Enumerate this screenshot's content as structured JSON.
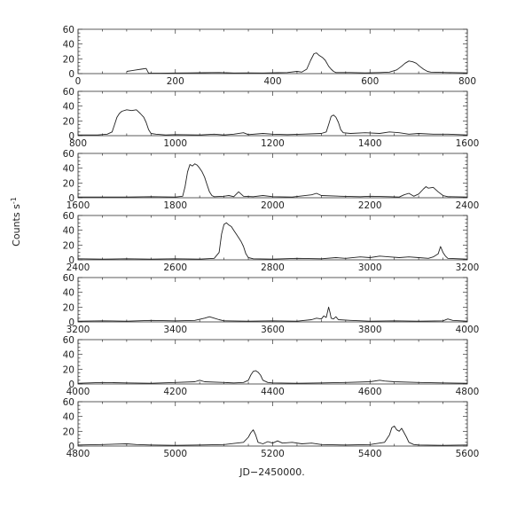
{
  "figure": {
    "ylabel": "Counts s",
    "ylabel_sup": "-1",
    "xlabel": "JD−2450000."
  },
  "chart_data": [
    {
      "type": "line",
      "xlim": [
        0,
        800
      ],
      "ylim": [
        0,
        60
      ],
      "x_ticks": [
        0,
        200,
        400,
        600,
        800
      ],
      "y_ticks": [
        0,
        20,
        40,
        60
      ],
      "segments": [
        [
          [
            100,
            3
          ],
          [
            110,
            4
          ],
          [
            120,
            5
          ],
          [
            130,
            6
          ],
          [
            140,
            7
          ],
          [
            145,
            0.5
          ],
          [
            150,
            0.5
          ],
          [
            170,
            0.5
          ],
          [
            200,
            0.8
          ],
          [
            230,
            1
          ],
          [
            260,
            1.2
          ],
          [
            290,
            1.5
          ],
          [
            320,
            0.8
          ],
          [
            350,
            1
          ],
          [
            380,
            0.8
          ],
          [
            410,
            1.2
          ],
          [
            430,
            1.5
          ],
          [
            450,
            3
          ],
          [
            460,
            2
          ],
          [
            470,
            6
          ],
          [
            478,
            18
          ],
          [
            485,
            27
          ],
          [
            490,
            28
          ],
          [
            495,
            25
          ],
          [
            502,
            22
          ],
          [
            508,
            18
          ],
          [
            515,
            10
          ],
          [
            520,
            6
          ],
          [
            525,
            3
          ],
          [
            530,
            1.5
          ],
          [
            560,
            1.5
          ],
          [
            590,
            1
          ],
          [
            620,
            1.5
          ],
          [
            640,
            2
          ],
          [
            655,
            5
          ],
          [
            665,
            10
          ],
          [
            672,
            14
          ],
          [
            680,
            17
          ],
          [
            688,
            16
          ],
          [
            695,
            14
          ],
          [
            702,
            10
          ],
          [
            710,
            6
          ],
          [
            718,
            3
          ],
          [
            725,
            2
          ],
          [
            760,
            1.5
          ],
          [
            800,
            1
          ]
        ]
      ]
    },
    {
      "type": "line",
      "xlim": [
        800,
        1600
      ],
      "ylim": [
        0,
        60
      ],
      "x_ticks": [
        800,
        1000,
        1200,
        1400,
        1600
      ],
      "y_ticks": [
        0,
        20,
        40,
        60
      ],
      "segments": [
        [
          [
            800,
            1
          ],
          [
            840,
            1
          ],
          [
            860,
            2
          ],
          [
            870,
            5
          ],
          [
            875,
            15
          ],
          [
            880,
            25
          ],
          [
            885,
            30
          ],
          [
            890,
            33
          ],
          [
            900,
            35
          ],
          [
            910,
            34
          ],
          [
            920,
            35
          ],
          [
            928,
            30
          ],
          [
            935,
            25
          ],
          [
            940,
            18
          ],
          [
            945,
            8
          ],
          [
            950,
            3
          ],
          [
            960,
            2
          ],
          [
            980,
            1
          ],
          [
            1000,
            1.5
          ],
          [
            1050,
            1
          ],
          [
            1080,
            2
          ],
          [
            1100,
            1
          ],
          [
            1120,
            2
          ],
          [
            1140,
            4
          ],
          [
            1150,
            1.5
          ],
          [
            1180,
            3
          ],
          [
            1200,
            2
          ],
          [
            1230,
            1.5
          ],
          [
            1260,
            2
          ],
          [
            1300,
            3
          ],
          [
            1310,
            5
          ],
          [
            1315,
            15
          ],
          [
            1320,
            26
          ],
          [
            1325,
            28
          ],
          [
            1330,
            25
          ],
          [
            1335,
            18
          ],
          [
            1340,
            8
          ],
          [
            1345,
            4
          ],
          [
            1360,
            3
          ],
          [
            1390,
            4
          ],
          [
            1420,
            3
          ],
          [
            1440,
            5
          ],
          [
            1460,
            4
          ],
          [
            1480,
            2
          ],
          [
            1500,
            3
          ],
          [
            1530,
            2
          ],
          [
            1560,
            2
          ],
          [
            1600,
            1
          ]
        ]
      ]
    },
    {
      "type": "line",
      "xlim": [
        1600,
        2400
      ],
      "ylim": [
        0,
        60
      ],
      "x_ticks": [
        1600,
        1800,
        2000,
        2200,
        2400
      ],
      "y_ticks": [
        0,
        20,
        40,
        60
      ],
      "segments": [
        [
          [
            1600,
            1
          ],
          [
            1650,
            1
          ],
          [
            1700,
            1
          ],
          [
            1750,
            1.5
          ],
          [
            1800,
            1
          ],
          [
            1815,
            2
          ],
          [
            1820,
            15
          ],
          [
            1825,
            35
          ],
          [
            1830,
            45
          ],
          [
            1835,
            43
          ],
          [
            1840,
            46
          ],
          [
            1845,
            44
          ],
          [
            1850,
            40
          ],
          [
            1855,
            35
          ],
          [
            1860,
            28
          ],
          [
            1865,
            18
          ],
          [
            1870,
            8
          ],
          [
            1875,
            3
          ],
          [
            1880,
            1.5
          ],
          [
            1900,
            2
          ],
          [
            1910,
            3
          ],
          [
            1920,
            1.5
          ],
          [
            1930,
            8
          ],
          [
            1940,
            2
          ],
          [
            1960,
            1.5
          ],
          [
            1980,
            3
          ],
          [
            2000,
            1.5
          ],
          [
            2040,
            1
          ],
          [
            2080,
            4
          ],
          [
            2090,
            6
          ],
          [
            2100,
            3
          ],
          [
            2140,
            2
          ],
          [
            2180,
            1.5
          ],
          [
            2200,
            2
          ],
          [
            2240,
            1.5
          ],
          [
            2260,
            1
          ],
          [
            2270,
            4
          ],
          [
            2280,
            6
          ],
          [
            2290,
            2
          ],
          [
            2300,
            5
          ],
          [
            2310,
            12
          ],
          [
            2315,
            15
          ],
          [
            2320,
            13
          ],
          [
            2330,
            14
          ],
          [
            2340,
            8
          ],
          [
            2350,
            3
          ],
          [
            2360,
            1.5
          ],
          [
            2400,
            1
          ]
        ]
      ]
    },
    {
      "type": "line",
      "xlim": [
        2400,
        3200
      ],
      "ylim": [
        0,
        60
      ],
      "x_ticks": [
        2400,
        2600,
        2800,
        3000,
        3200
      ],
      "y_ticks": [
        0,
        20,
        40,
        60
      ],
      "segments": [
        [
          [
            2400,
            1.5
          ],
          [
            2450,
            1
          ],
          [
            2500,
            1.5
          ],
          [
            2550,
            1
          ],
          [
            2600,
            1.5
          ],
          [
            2650,
            1
          ],
          [
            2680,
            2
          ],
          [
            2690,
            10
          ],
          [
            2695,
            35
          ],
          [
            2700,
            48
          ],
          [
            2705,
            50
          ],
          [
            2710,
            47
          ],
          [
            2715,
            45
          ],
          [
            2720,
            40
          ],
          [
            2725,
            35
          ],
          [
            2730,
            30
          ],
          [
            2735,
            25
          ],
          [
            2740,
            18
          ],
          [
            2745,
            8
          ],
          [
            2750,
            3
          ],
          [
            2760,
            1.5
          ],
          [
            2800,
            1
          ],
          [
            2850,
            2
          ],
          [
            2900,
            1.5
          ],
          [
            2930,
            3
          ],
          [
            2950,
            2
          ],
          [
            2980,
            4
          ],
          [
            3000,
            3
          ],
          [
            3020,
            5
          ],
          [
            3040,
            4
          ],
          [
            3060,
            3
          ],
          [
            3080,
            4
          ],
          [
            3100,
            3
          ],
          [
            3120,
            2
          ],
          [
            3130,
            4
          ],
          [
            3140,
            8
          ],
          [
            3145,
            18
          ],
          [
            3150,
            10
          ],
          [
            3155,
            5
          ],
          [
            3160,
            2
          ],
          [
            3200,
            1
          ]
        ]
      ]
    },
    {
      "type": "line",
      "xlim": [
        3200,
        4000
      ],
      "ylim": [
        0,
        60
      ],
      "x_ticks": [
        3200,
        3400,
        3600,
        3800,
        4000
      ],
      "y_ticks": [
        0,
        20,
        40,
        60
      ],
      "segments": [
        [
          [
            3200,
            1
          ],
          [
            3250,
            1.5
          ],
          [
            3300,
            1
          ],
          [
            3350,
            2
          ],
          [
            3400,
            1.5
          ],
          [
            3440,
            2
          ],
          [
            3460,
            5
          ],
          [
            3470,
            7
          ],
          [
            3480,
            5
          ],
          [
            3490,
            3
          ],
          [
            3500,
            1.5
          ],
          [
            3550,
            1
          ],
          [
            3600,
            1.5
          ],
          [
            3650,
            1
          ],
          [
            3680,
            3
          ],
          [
            3690,
            5
          ],
          [
            3700,
            4
          ],
          [
            3705,
            8
          ],
          [
            3710,
            6
          ],
          [
            3715,
            20
          ],
          [
            3718,
            12
          ],
          [
            3720,
            5
          ],
          [
            3725,
            4
          ],
          [
            3730,
            7
          ],
          [
            3735,
            3
          ],
          [
            3760,
            2
          ],
          [
            3800,
            1
          ],
          [
            3850,
            1.5
          ],
          [
            3900,
            1
          ],
          [
            3950,
            1.5
          ],
          [
            3960,
            4
          ],
          [
            3970,
            2
          ],
          [
            4000,
            1
          ]
        ]
      ]
    },
    {
      "type": "line",
      "xlim": [
        4000,
        4800
      ],
      "ylim": [
        0,
        60
      ],
      "x_ticks": [
        4000,
        4200,
        4400,
        4600,
        4800
      ],
      "y_ticks": [
        0,
        20,
        40,
        60
      ],
      "segments": [
        [
          [
            4000,
            1
          ],
          [
            4050,
            2
          ],
          [
            4100,
            1.5
          ],
          [
            4150,
            1
          ],
          [
            4200,
            2
          ],
          [
            4240,
            3
          ],
          [
            4250,
            5
          ],
          [
            4260,
            3
          ],
          [
            4300,
            2
          ],
          [
            4320,
            1.5
          ],
          [
            4340,
            2
          ],
          [
            4350,
            5
          ],
          [
            4355,
            12
          ],
          [
            4360,
            17
          ],
          [
            4365,
            18
          ],
          [
            4370,
            16
          ],
          [
            4375,
            12
          ],
          [
            4380,
            5
          ],
          [
            4390,
            2
          ],
          [
            4400,
            1.5
          ],
          [
            4450,
            1
          ],
          [
            4500,
            1.5
          ],
          [
            4550,
            2
          ],
          [
            4600,
            3
          ],
          [
            4620,
            5
          ],
          [
            4630,
            4
          ],
          [
            4650,
            3
          ],
          [
            4700,
            2
          ],
          [
            4750,
            1.5
          ],
          [
            4800,
            1
          ]
        ]
      ]
    },
    {
      "type": "line",
      "xlim": [
        4800,
        5600
      ],
      "ylim": [
        0,
        60
      ],
      "x_ticks": [
        4800,
        5000,
        5200,
        5400,
        5600
      ],
      "y_ticks": [
        0,
        20,
        40,
        60
      ],
      "segments": [
        [
          [
            4800,
            1.5
          ],
          [
            4850,
            2
          ],
          [
            4900,
            3
          ],
          [
            4920,
            2
          ],
          [
            4950,
            1.5
          ],
          [
            5000,
            1
          ],
          [
            5050,
            1.5
          ],
          [
            5100,
            2
          ],
          [
            5140,
            5
          ],
          [
            5150,
            12
          ],
          [
            5155,
            18
          ],
          [
            5160,
            22
          ],
          [
            5165,
            15
          ],
          [
            5170,
            5
          ],
          [
            5180,
            3
          ],
          [
            5190,
            6
          ],
          [
            5200,
            4
          ],
          [
            5210,
            7
          ],
          [
            5220,
            4
          ],
          [
            5240,
            5
          ],
          [
            5260,
            3
          ],
          [
            5280,
            4
          ],
          [
            5300,
            2
          ],
          [
            5350,
            1.5
          ],
          [
            5400,
            2
          ],
          [
            5430,
            5
          ],
          [
            5440,
            15
          ],
          [
            5445,
            25
          ],
          [
            5450,
            27
          ],
          [
            5455,
            22
          ],
          [
            5460,
            20
          ],
          [
            5465,
            24
          ],
          [
            5470,
            18
          ],
          [
            5475,
            12
          ],
          [
            5480,
            5
          ],
          [
            5490,
            2
          ],
          [
            5500,
            1.5
          ],
          [
            5550,
            1
          ],
          [
            5600,
            1.5
          ]
        ]
      ]
    }
  ]
}
